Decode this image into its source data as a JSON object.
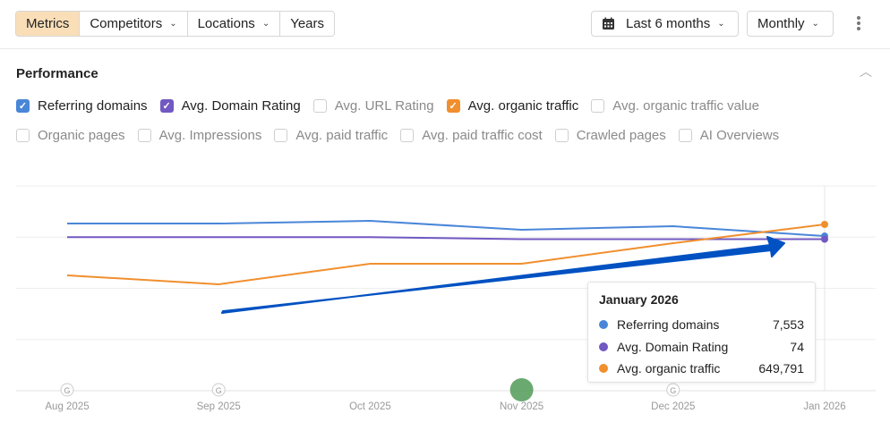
{
  "toolbar": {
    "tabs": [
      {
        "label": "Metrics",
        "active": true,
        "dropdown": false
      },
      {
        "label": "Competitors",
        "dropdown": true
      },
      {
        "label": "Locations",
        "dropdown": true
      },
      {
        "label": "Years",
        "dropdown": false
      }
    ],
    "date_range": "Last 6 months",
    "interval": "Monthly",
    "calendar_icon": "calendar-icon",
    "more_icon": "kebab-icon"
  },
  "section": {
    "title": "Performance",
    "collapse_icon": "chevron-up-icon"
  },
  "metrics_row1": [
    {
      "label": "Referring domains",
      "checked": true,
      "color": "#4a86d8"
    },
    {
      "label": "Avg. Domain Rating",
      "checked": true,
      "color": "#7158c2"
    },
    {
      "label": "Avg. URL Rating",
      "checked": false
    },
    {
      "label": "Avg. organic traffic",
      "checked": true,
      "color": "#f08f2e"
    },
    {
      "label": "Avg. organic traffic value",
      "checked": false
    }
  ],
  "metrics_row2": [
    {
      "label": "Organic pages",
      "checked": false
    },
    {
      "label": "Avg. Impressions",
      "checked": false
    },
    {
      "label": "Avg. paid traffic",
      "checked": false
    },
    {
      "label": "Avg. paid traffic cost",
      "checked": false
    },
    {
      "label": "Crawled pages",
      "checked": false
    },
    {
      "label": "AI Overviews",
      "checked": false
    }
  ],
  "chart_data": {
    "type": "line",
    "categories": [
      "Aug 2025",
      "Sep 2025",
      "Oct 2025",
      "Nov 2025",
      "Dec 2025",
      "Jan 2026"
    ],
    "series": [
      {
        "name": "Referring domains",
        "color": "#4a86d8",
        "values": [
          8165,
          8165,
          8295,
          7859,
          8033,
          7553
        ],
        "ylim": [
          0,
          10000
        ]
      },
      {
        "name": "Avg. Domain Rating",
        "color": "#7158c2",
        "values": [
          75,
          75,
          75,
          74,
          74,
          74
        ],
        "ylim": [
          0,
          100
        ]
      },
      {
        "name": "Avg. organic traffic",
        "color": "#f08f2e",
        "values": [
          450700,
          415800,
          496100,
          496100,
          576500,
          649791
        ],
        "ylim": [
          0,
          800000
        ]
      }
    ],
    "google_update_markers": [
      "Aug 2025",
      "Sep 2025",
      "Dec 2025"
    ],
    "marker_label": "G",
    "highlight_marker": {
      "category": "Nov 2025",
      "color": "#5aa05f"
    },
    "hover_category": "Jan 2026",
    "grid": true
  },
  "tooltip": {
    "title": "January 2026",
    "rows": [
      {
        "label": "Referring domains",
        "value": "7,553",
        "color": "#4a86d8"
      },
      {
        "label": "Avg. Domain Rating",
        "value": "74",
        "color": "#7158c2"
      },
      {
        "label": "Avg. organic traffic",
        "value": "649,791",
        "color": "#f08f2e"
      }
    ]
  },
  "annotation": {
    "arrow_color": "#0051c2"
  }
}
